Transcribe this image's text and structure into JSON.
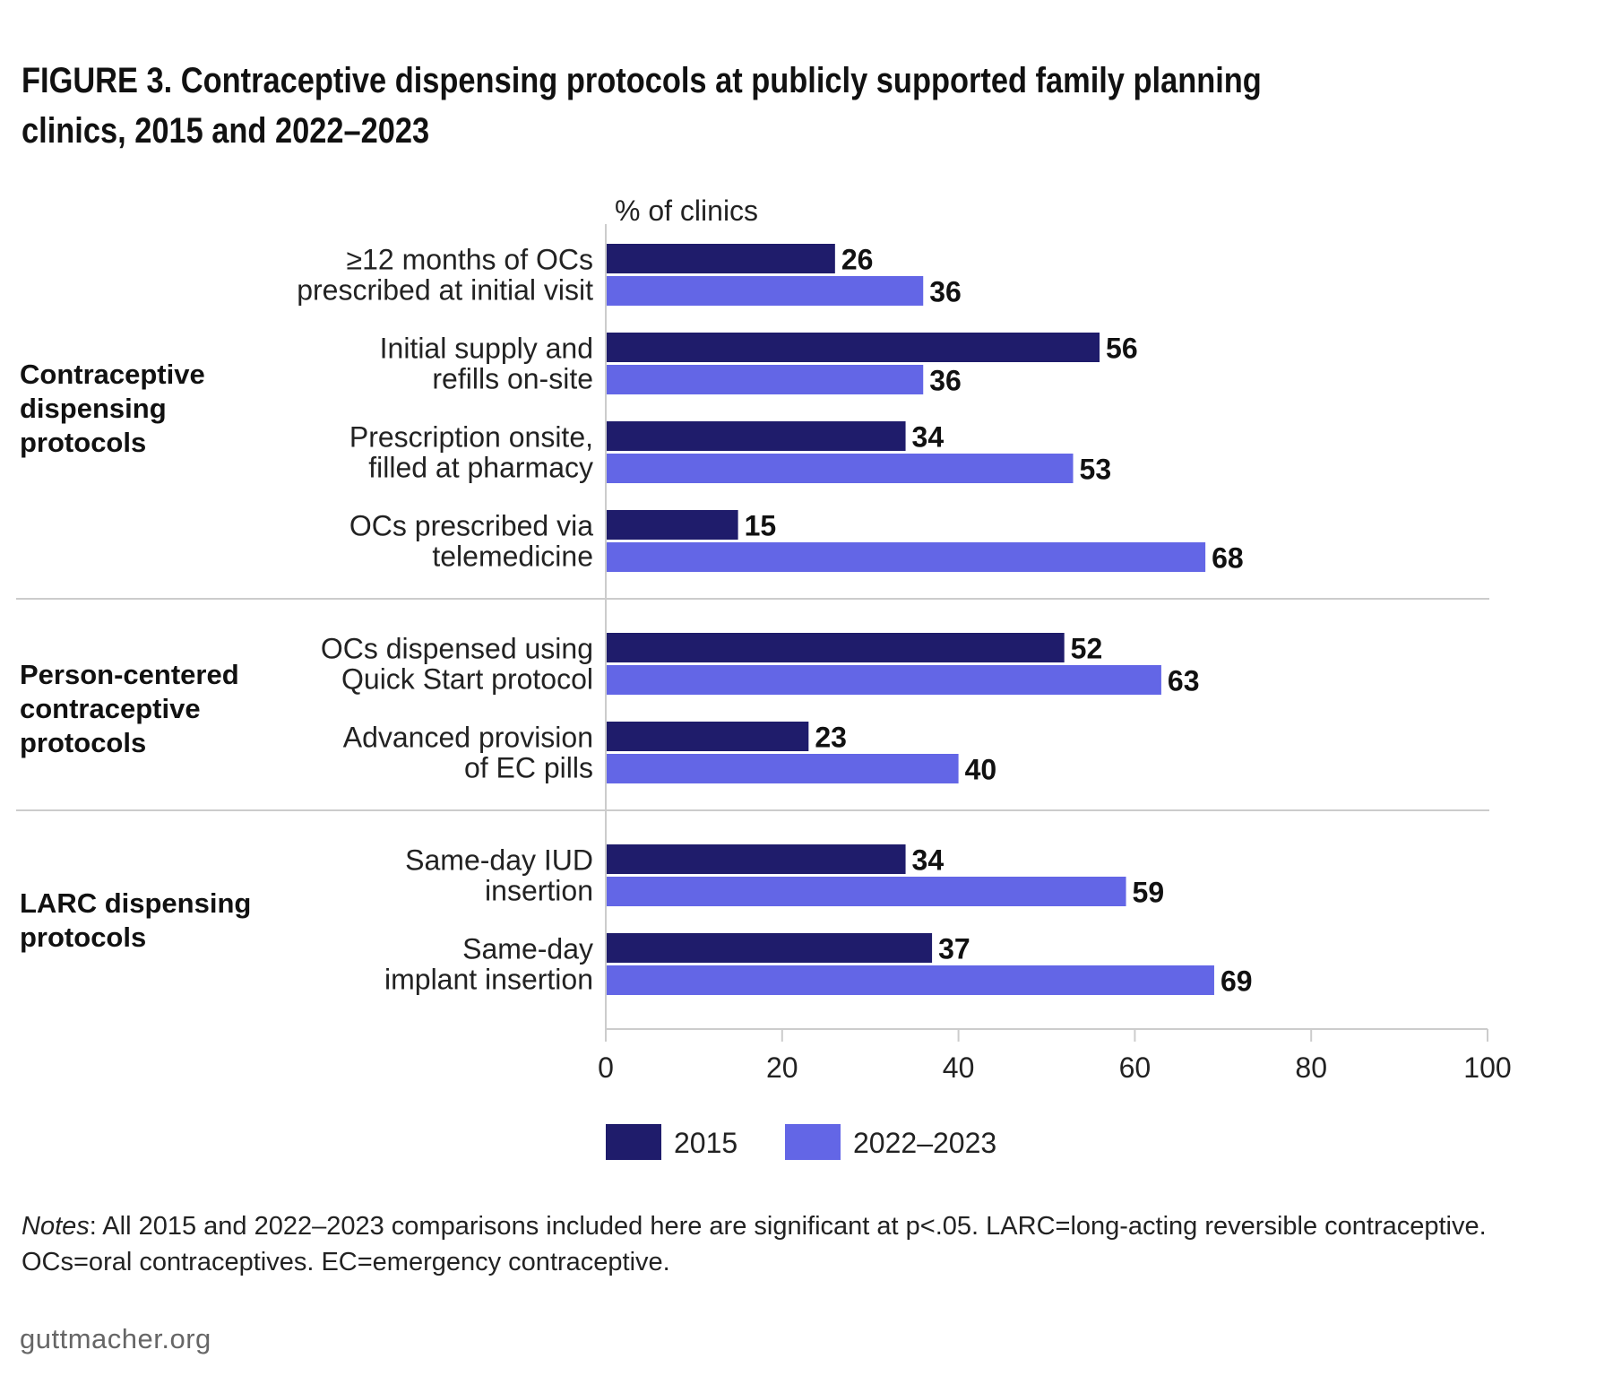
{
  "title": "FIGURE 3. Contraceptive dispensing protocols at publicly supported family planning clinics, 2015 and 2022–2023",
  "notes": {
    "lead": "Notes",
    "text": ": All 2015 and 2022–2023 comparisons included here are significant at p<.05. LARC=long-acting reversible contraceptive. OCs=oral contraceptives. EC=emergency contraceptive."
  },
  "source": "guttmacher.org",
  "colors": {
    "s2015": "#1f1c6b",
    "s2022": "#6366e6",
    "divider": "#cccccc",
    "axis": "#cccccc"
  },
  "chart_data": {
    "type": "bar",
    "orientation": "horizontal",
    "axis_title": "% of clinics",
    "xlim": [
      0,
      100
    ],
    "ticks": [
      0,
      20,
      40,
      60,
      80,
      100
    ],
    "series_names": [
      "2015",
      "2022–2023"
    ],
    "groups": [
      {
        "label": [
          "Contraceptive",
          "dispensing",
          "protocols"
        ],
        "items": [
          {
            "label": [
              "≥12 months of OCs",
              "prescribed at initial visit"
            ],
            "values": [
              26,
              36
            ]
          },
          {
            "label": [
              "Initial supply and",
              "refills on-site"
            ],
            "values": [
              56,
              36
            ]
          },
          {
            "label": [
              "Prescription onsite,",
              "filled at pharmacy"
            ],
            "values": [
              34,
              53
            ]
          },
          {
            "label": [
              "OCs prescribed via",
              "telemedicine"
            ],
            "values": [
              15,
              68
            ]
          }
        ]
      },
      {
        "label": [
          "Person-centered",
          "contraceptive",
          "protocols"
        ],
        "items": [
          {
            "label": [
              "OCs dispensed using",
              "Quick Start protocol"
            ],
            "values": [
              52,
              63
            ]
          },
          {
            "label": [
              "Advanced provision",
              "of EC pills"
            ],
            "values": [
              23,
              40
            ]
          }
        ]
      },
      {
        "label": [
          "LARC dispensing",
          "protocols"
        ],
        "items": [
          {
            "label": [
              "Same-day IUD",
              "insertion"
            ],
            "values": [
              34,
              59
            ]
          },
          {
            "label": [
              "Same-day",
              "implant insertion"
            ],
            "values": [
              37,
              69
            ]
          }
        ]
      }
    ]
  }
}
